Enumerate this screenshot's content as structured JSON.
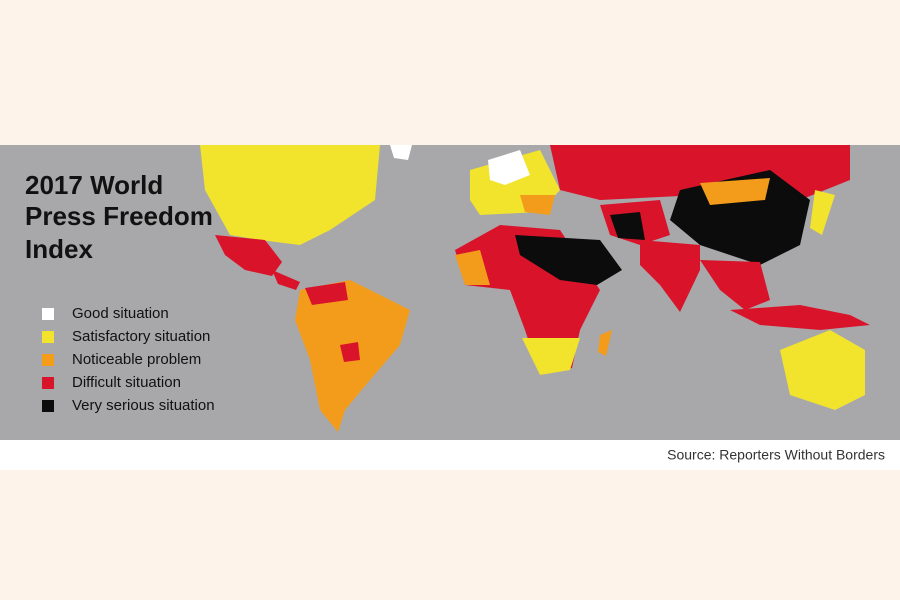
{
  "map": {
    "title_lines": [
      "2017 World",
      "Press Freedom",
      "Index"
    ],
    "legend": [
      {
        "label": "Good situation",
        "color": "#ffffff"
      },
      {
        "label": "Satisfactory situation",
        "color": "#f2e32c"
      },
      {
        "label": "Noticeable problem",
        "color": "#f39c1b"
      },
      {
        "label": "Difficult situation",
        "color": "#d9142a"
      },
      {
        "label": "Very serious situation",
        "color": "#0c0c0c"
      }
    ],
    "source": "Source: Reporters Without Borders"
  }
}
